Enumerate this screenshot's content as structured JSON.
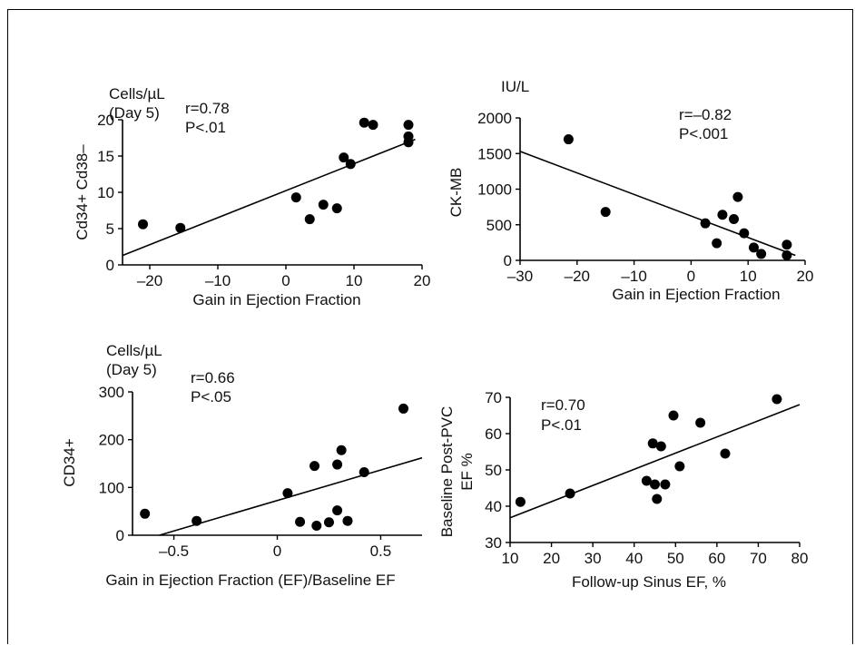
{
  "chart_data": [
    {
      "id": "A",
      "type": "scatter",
      "ylabel": "Cd34+ Cd38–",
      "unit_line1": "Cells/µL",
      "unit_line2": "(Day 5)",
      "xlabel": "Gain in Ejection Fraction",
      "stat_r": "r=0.78",
      "stat_p": "P<.01",
      "xlim": [
        -24,
        20
      ],
      "ylim": [
        0,
        20
      ],
      "xticks": [
        -20,
        -10,
        0,
        10,
        20
      ],
      "yticks": [
        0,
        5,
        10,
        15,
        20
      ],
      "xtick_labels": [
        "–20",
        "–10",
        "0",
        "10",
        "20"
      ],
      "ytick_labels": [
        "0",
        "5",
        "10",
        "15",
        "20"
      ],
      "fit_line": {
        "x": [
          -24,
          19
        ],
        "y": [
          1.3,
          17.3
        ]
      },
      "points": [
        {
          "x": -21,
          "y": 5.6
        },
        {
          "x": -15.5,
          "y": 5.1
        },
        {
          "x": 1.5,
          "y": 9.3
        },
        {
          "x": 3.5,
          "y": 6.3
        },
        {
          "x": 5.5,
          "y": 8.3
        },
        {
          "x": 7.5,
          "y": 7.8
        },
        {
          "x": 8.5,
          "y": 14.8
        },
        {
          "x": 9.5,
          "y": 13.9
        },
        {
          "x": 11.5,
          "y": 19.6
        },
        {
          "x": 12.8,
          "y": 19.3
        },
        {
          "x": 18,
          "y": 19.3
        },
        {
          "x": 18,
          "y": 17.7
        },
        {
          "x": 18,
          "y": 16.9
        }
      ]
    },
    {
      "id": "B",
      "type": "scatter",
      "ylabel": "CK-MB",
      "unit_line1": "IU/L",
      "unit_line2": "",
      "xlabel": "Gain in Ejection Fraction",
      "stat_r": "r=–0.82",
      "stat_p": "P<.001",
      "xlim": [
        -30,
        20
      ],
      "ylim": [
        0,
        2000
      ],
      "xticks": [
        -30,
        -20,
        -10,
        0,
        10,
        20
      ],
      "yticks": [
        0,
        500,
        1000,
        1500,
        2000
      ],
      "xtick_labels": [
        "–30",
        "–20",
        "–10",
        "0",
        "10",
        "20"
      ],
      "ytick_labels": [
        "0",
        "500",
        "1000",
        "1500",
        "2000"
      ],
      "fit_line": {
        "x": [
          -30,
          18.3
        ],
        "y": [
          1530,
          70
        ]
      },
      "points": [
        {
          "x": -21.5,
          "y": 1700
        },
        {
          "x": -15,
          "y": 680
        },
        {
          "x": 2.5,
          "y": 520
        },
        {
          "x": 4.5,
          "y": 240
        },
        {
          "x": 5.5,
          "y": 640
        },
        {
          "x": 7.5,
          "y": 580
        },
        {
          "x": 8.2,
          "y": 890
        },
        {
          "x": 9.3,
          "y": 380
        },
        {
          "x": 11,
          "y": 180
        },
        {
          "x": 12.3,
          "y": 90
        },
        {
          "x": 16.8,
          "y": 220
        },
        {
          "x": 16.8,
          "y": 70
        }
      ]
    },
    {
      "id": "C",
      "type": "scatter",
      "ylabel": "CD34+",
      "unit_line1": "Cells/µL",
      "unit_line2": "(Day 5)",
      "xlabel": "Gain in Ejection Fraction (EF)/Baseline EF",
      "stat_r": "r=0.66",
      "stat_p": "P<.05",
      "xlim": [
        -0.7,
        0.7
      ],
      "ylim": [
        0,
        300
      ],
      "xticks": [
        -0.5,
        0,
        0.5
      ],
      "yticks": [
        0,
        100,
        200,
        300
      ],
      "xtick_labels": [
        "–0.5",
        "0",
        "0.5"
      ],
      "ytick_labels": [
        "0",
        "100",
        "200",
        "300"
      ],
      "fit_line": {
        "x": [
          -0.57,
          0.7
        ],
        "y": [
          0,
          162
        ]
      },
      "points": [
        {
          "x": -0.64,
          "y": 45
        },
        {
          "x": -0.39,
          "y": 30
        },
        {
          "x": 0.05,
          "y": 88
        },
        {
          "x": 0.11,
          "y": 28
        },
        {
          "x": 0.18,
          "y": 145
        },
        {
          "x": 0.19,
          "y": 20
        },
        {
          "x": 0.25,
          "y": 27
        },
        {
          "x": 0.29,
          "y": 148
        },
        {
          "x": 0.29,
          "y": 52
        },
        {
          "x": 0.31,
          "y": 178
        },
        {
          "x": 0.34,
          "y": 30
        },
        {
          "x": 0.42,
          "y": 132
        },
        {
          "x": 0.61,
          "y": 265
        }
      ]
    },
    {
      "id": "D",
      "type": "scatter",
      "ylabel": "Baseline Post-PVC",
      "ylabel2": "EF %",
      "unit_line1": "",
      "unit_line2": "",
      "xlabel": "Follow-up Sinus EF, %",
      "stat_r": "r=0.70",
      "stat_p": "P<.01",
      "xlim": [
        10,
        80
      ],
      "ylim": [
        30,
        70
      ],
      "xticks": [
        10,
        20,
        30,
        40,
        50,
        60,
        70,
        80
      ],
      "yticks": [
        30,
        40,
        50,
        60,
        70
      ],
      "xtick_labels": [
        "10",
        "20",
        "30",
        "40",
        "50",
        "60",
        "70",
        "80"
      ],
      "ytick_labels": [
        "30",
        "40",
        "50",
        "60",
        "70"
      ],
      "fit_line": {
        "x": [
          10,
          80
        ],
        "y": [
          36.8,
          68.0
        ]
      },
      "points": [
        {
          "x": 12.5,
          "y": 41.2
        },
        {
          "x": 24.5,
          "y": 43.5
        },
        {
          "x": 43,
          "y": 47
        },
        {
          "x": 44.5,
          "y": 57.3
        },
        {
          "x": 45,
          "y": 46
        },
        {
          "x": 45.5,
          "y": 42
        },
        {
          "x": 46.5,
          "y": 56.5
        },
        {
          "x": 47.5,
          "y": 46
        },
        {
          "x": 49.5,
          "y": 65
        },
        {
          "x": 51,
          "y": 51
        },
        {
          "x": 56,
          "y": 63
        },
        {
          "x": 62,
          "y": 54.5
        },
        {
          "x": 74.5,
          "y": 69.5
        }
      ]
    }
  ]
}
